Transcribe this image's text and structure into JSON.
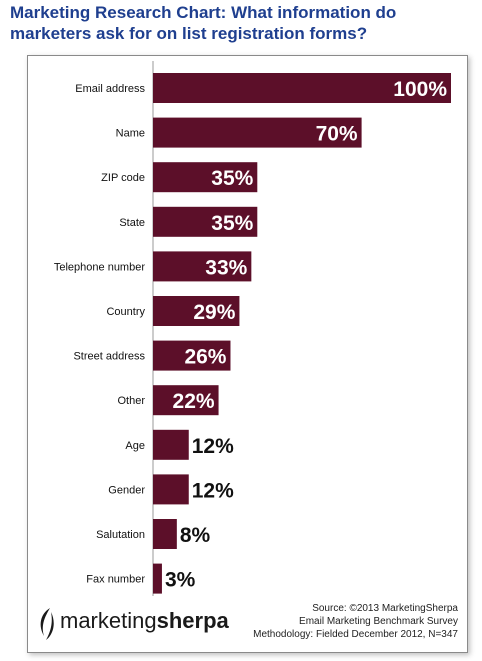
{
  "title": "Marketing Research Chart: What information do marketers ask for on list registration forms?",
  "source": {
    "line1": "Source: ©2013 MarketingSherpa",
    "line2": "Email Marketing Benchmark Survey",
    "line3": "Methodology: Fielded December 2012, N=347"
  },
  "logo": {
    "prefix": "marketing",
    "brand": "sherpa"
  },
  "colors": {
    "bar": "#5c0f29",
    "title": "#1f3f8f",
    "value_on_bar": "#ffffff",
    "value_outside": "#111111"
  },
  "chart_data": {
    "type": "bar",
    "orientation": "horizontal",
    "categories": [
      "Email address",
      "Name",
      "ZIP code",
      "State",
      "Telephone  number",
      "Country",
      "Street address",
      "Other",
      "Age",
      "Gender",
      "Salutation",
      "Fax number"
    ],
    "values": [
      100,
      70,
      35,
      35,
      33,
      29,
      26,
      22,
      12,
      12,
      8,
      3
    ],
    "value_labels": [
      "100%",
      "70%",
      "35%",
      "35%",
      "33%",
      "29%",
      "26%",
      "22%",
      "12%",
      "12%",
      "8%",
      "3%"
    ],
    "xlim": [
      0,
      100
    ],
    "grid": false,
    "legend": "none"
  }
}
